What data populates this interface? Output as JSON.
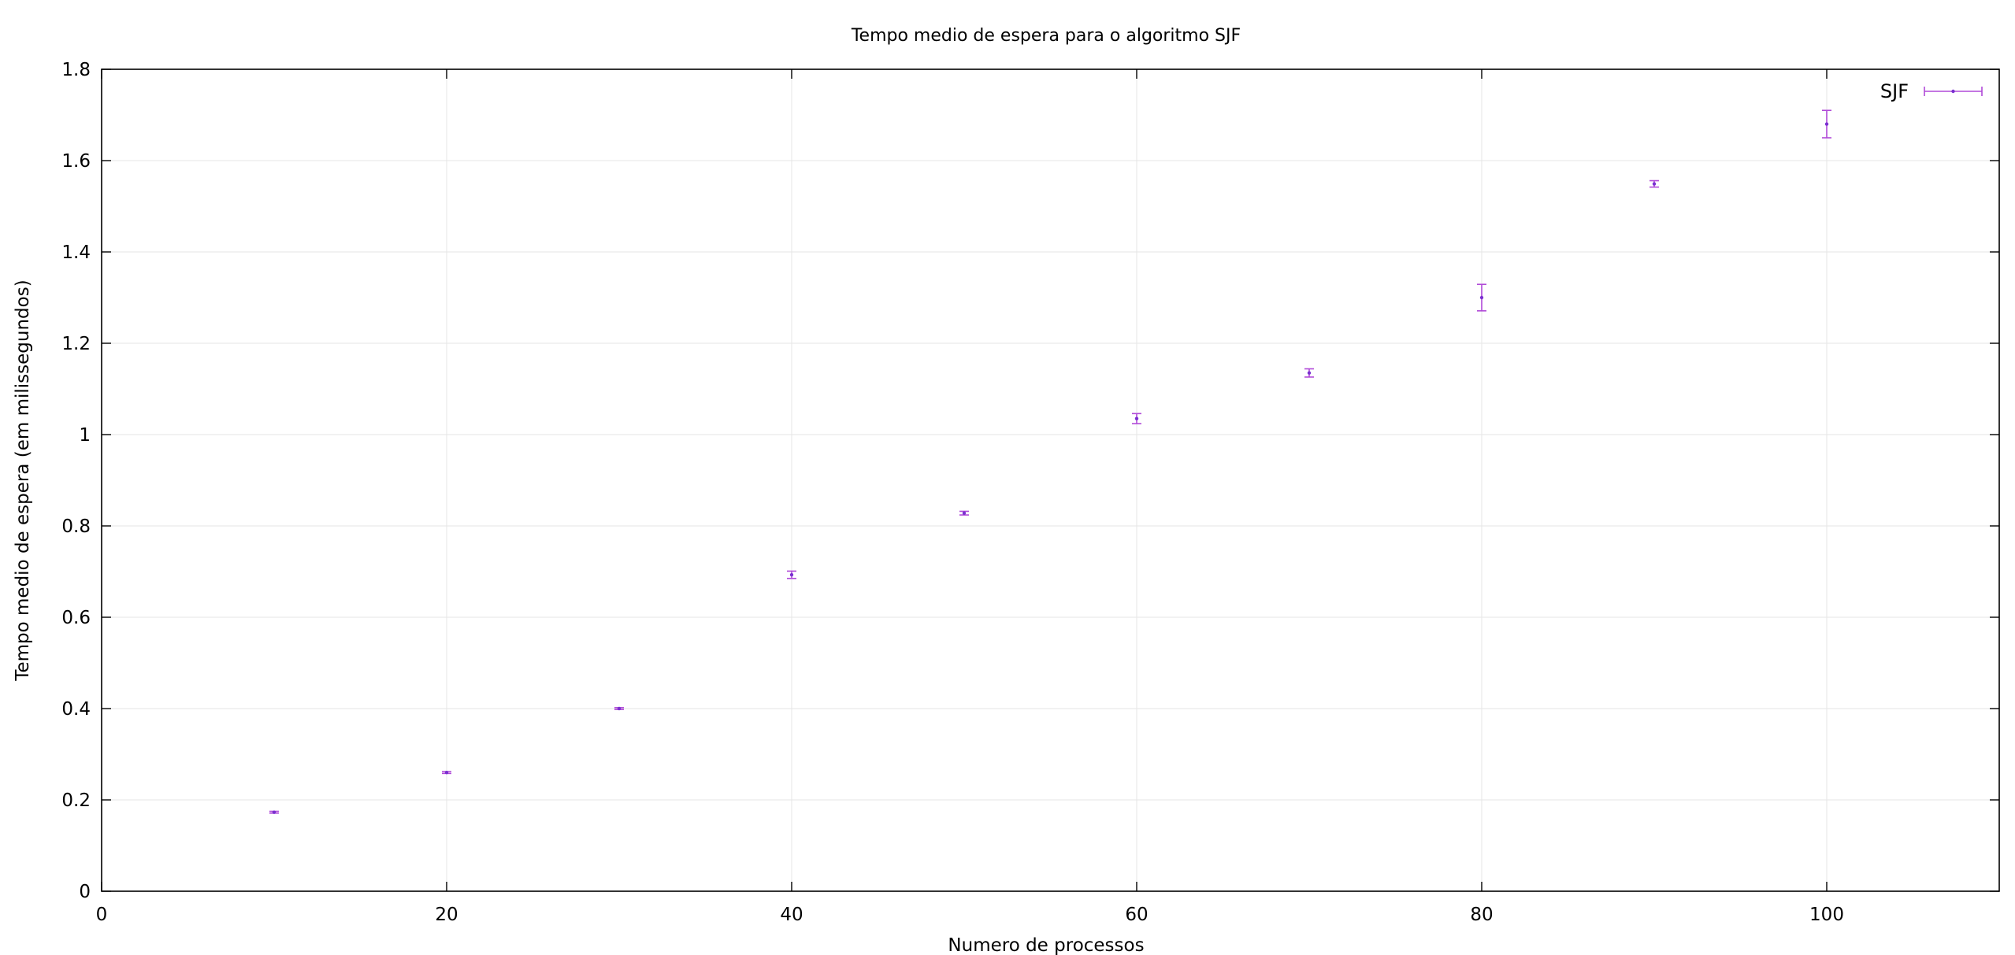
{
  "chart_data": {
    "type": "scatter",
    "title": "Tempo medio de espera para o algoritmo SJF",
    "xlabel": "Numero de processos",
    "ylabel": "Tempo medio de espera (em milissegundos)",
    "xlim": [
      0,
      110
    ],
    "ylim": [
      0,
      1.8
    ],
    "xticks": [
      0,
      20,
      40,
      60,
      80,
      100
    ],
    "yticks": [
      0,
      0.2,
      0.4,
      0.6,
      0.8,
      1,
      1.2,
      1.4,
      1.6,
      1.8
    ],
    "xtick_labels": [
      "0",
      "20",
      "40",
      "60",
      "80",
      "100"
    ],
    "ytick_labels": [
      "0",
      "0.2",
      "0.4",
      "0.6",
      "0.8",
      "1",
      "1.2",
      "1.4",
      "1.6",
      "1.8"
    ],
    "grid": true,
    "legend_position": "top-right",
    "series": [
      {
        "name": "SJF",
        "color": "#b04ad8",
        "point_color": "#7a2fd0",
        "x": [
          10,
          20,
          30,
          40,
          50,
          60,
          70,
          80,
          90,
          100
        ],
        "y": [
          0.173,
          0.26,
          0.4,
          0.693,
          0.828,
          1.035,
          1.135,
          1.3,
          1.549,
          1.68
        ],
        "yerr": [
          0.002,
          0.002,
          0.002,
          0.008,
          0.004,
          0.011,
          0.009,
          0.029,
          0.007,
          0.03
        ]
      }
    ]
  }
}
